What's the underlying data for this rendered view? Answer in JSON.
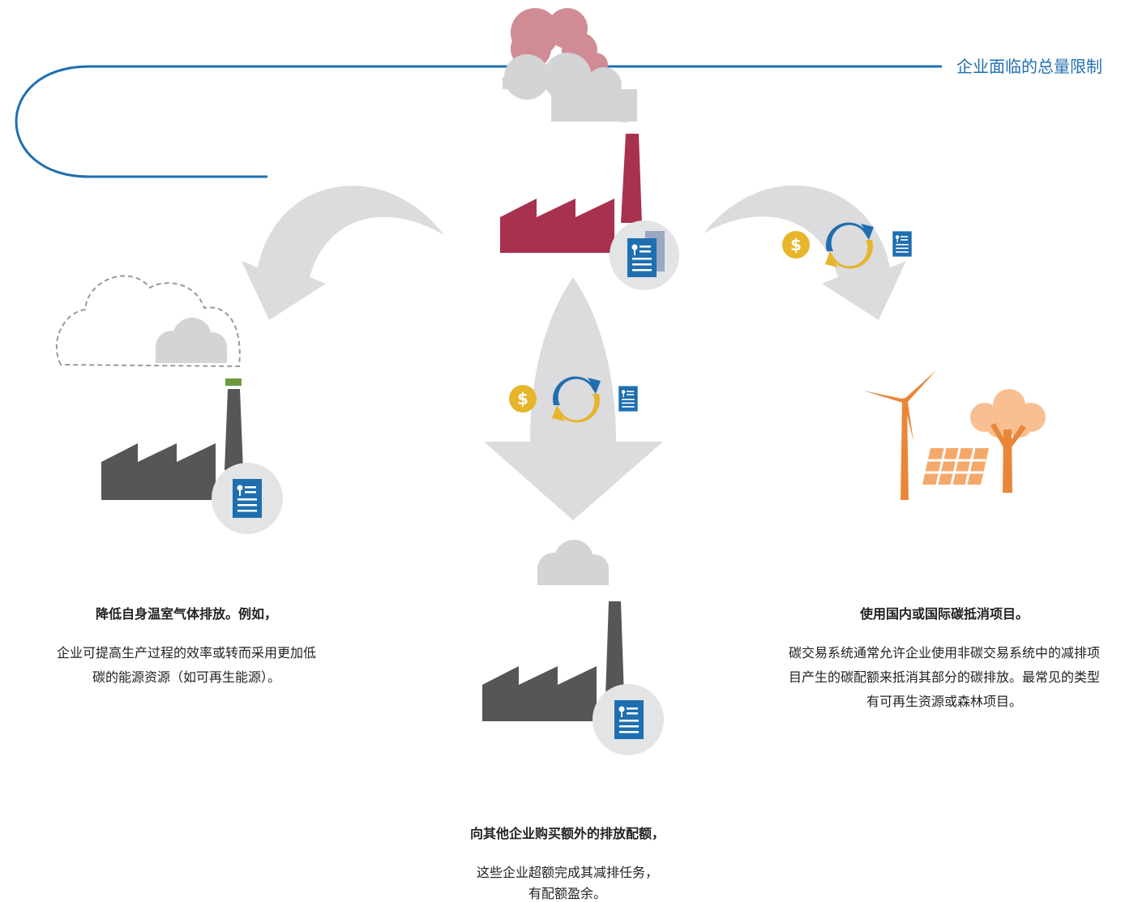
{
  "cap": {
    "label": "企业面临的总量限制"
  },
  "currency_symbol": "$",
  "options": {
    "reduce": {
      "title": "降低自身温室气体排放。例如，",
      "body": [
        "企业可提高生产过程的效率或转而采用更加低",
        "碳的能源资源（如可再生能源）。"
      ]
    },
    "offset": {
      "title": "使用国内或国际碳抵消项目。",
      "body": [
        "碳交易系统通常允许企业使用非碳交易系统中的减排项",
        "目产生的碳配额来抵消其部分的碳排放。最常见的类型",
        "有可再生资源或森林项目。"
      ]
    },
    "buy": {
      "title": "向其他企业购买额外的排放配额，",
      "body": [
        "这些企业超额完成其减排任务，",
        "有配额盈余。"
      ]
    }
  }
}
